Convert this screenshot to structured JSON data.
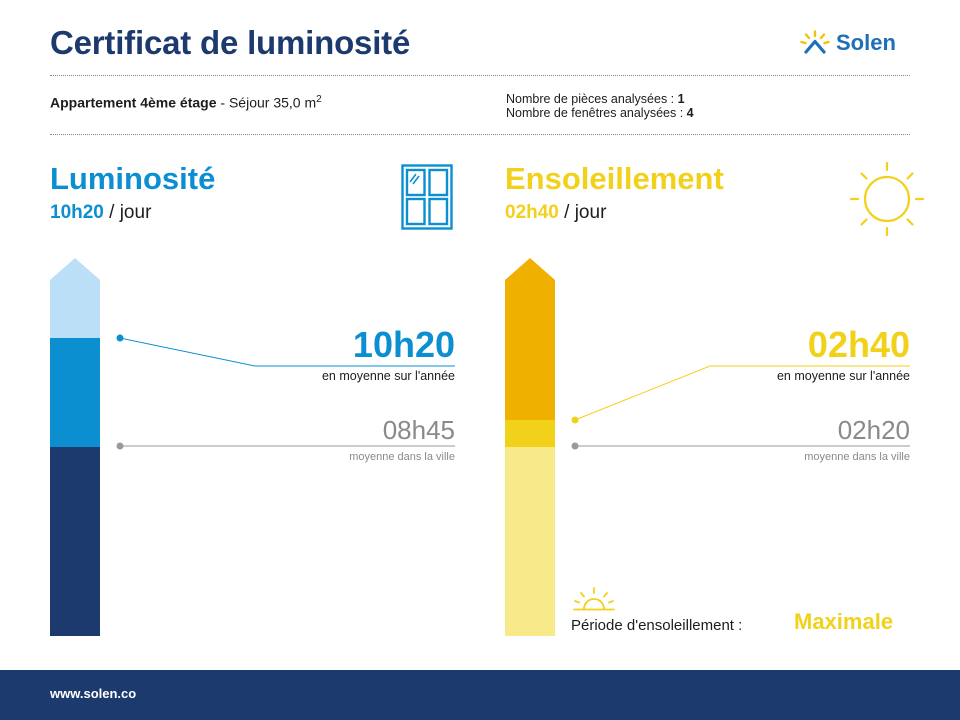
{
  "header": {
    "title": "Certificat de luminosité",
    "brand_name": "Solen",
    "brand_colors": {
      "navy": "#1c3a6e",
      "blue": "#1e6fb8",
      "yellow": "#f2d11b"
    }
  },
  "apartment": {
    "label": "Appartement 4ème étage",
    "separator": " - ",
    "room": "Séjour 35,0 m",
    "room_unit_sup": "2",
    "rooms_label": "Nombre de pièces analysées : ",
    "rooms_value": "1",
    "windows_label": "Nombre de fenêtres analysées : ",
    "windows_value": "4"
  },
  "luminosite": {
    "title": "Luminosité",
    "value": "10h20",
    "unit": " / jour",
    "big_value": "10h20",
    "caption": "en moyenne sur l'année",
    "city_value": "08h45",
    "city_caption": "moyenne dans la ville",
    "icon": "window-icon",
    "colors": {
      "accent": "#0b8fd0",
      "light": "#bcdff8",
      "mid": "#0b8fd0",
      "dark": "#1c3a6e"
    }
  },
  "ensoleillement": {
    "title": "Ensoleillement",
    "value": "02h40",
    "unit": " / jour",
    "big_value": "02h40",
    "caption": "en moyenne sur l'année",
    "city_value": "02h20",
    "city_caption": "moyenne dans la ville",
    "icon": "sun-icon",
    "periode_label": "Période d'ensoleillement :",
    "periode_value": "Maximale",
    "colors": {
      "accent": "#f2d11b",
      "dark": "#f0b000",
      "mid": "#f2d11b",
      "light": "#f8e98a"
    }
  },
  "footer": {
    "url": "www.solen.co"
  }
}
